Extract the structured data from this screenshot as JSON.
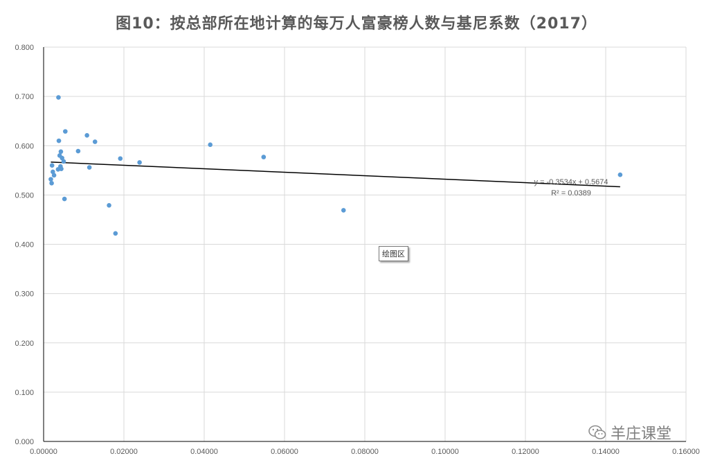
{
  "title": "图10：按总部所在地计算的每万人富豪榜人数与基尼系数（2017）",
  "plot_area_tooltip": "绘图区",
  "watermark": {
    "text": "羊庄课堂",
    "icon": "wechat-icon"
  },
  "colors": {
    "points": "#5B9BD5",
    "trendline": "#000000",
    "grid": "#D9D9D9",
    "text": "#595959"
  },
  "chart_data": {
    "type": "scatter",
    "title": "图10：按总部所在地计算的每万人富豪榜人数与基尼系数（2017）",
    "xlabel": "",
    "ylabel": "",
    "xlim": [
      0,
      0.16
    ],
    "ylim": [
      0,
      0.8
    ],
    "grid": true,
    "x_ticks": [
      "0.00000",
      "0.02000",
      "0.04000",
      "0.06000",
      "0.08000",
      "0.10000",
      "0.12000",
      "0.14000",
      "0.16000"
    ],
    "y_ticks": [
      "0.000",
      "0.100",
      "0.200",
      "0.300",
      "0.400",
      "0.500",
      "0.600",
      "0.700",
      "0.800"
    ],
    "series": [
      {
        "points": [
          {
            "x": 0.0018,
            "y": 0.532
          },
          {
            "x": 0.002,
            "y": 0.524
          },
          {
            "x": 0.0021,
            "y": 0.56
          },
          {
            "x": 0.0023,
            "y": 0.547
          },
          {
            "x": 0.0026,
            "y": 0.54
          },
          {
            "x": 0.0036,
            "y": 0.552
          },
          {
            "x": 0.0037,
            "y": 0.698
          },
          {
            "x": 0.0038,
            "y": 0.61
          },
          {
            "x": 0.004,
            "y": 0.58
          },
          {
            "x": 0.0042,
            "y": 0.558
          },
          {
            "x": 0.0043,
            "y": 0.588
          },
          {
            "x": 0.0044,
            "y": 0.553
          },
          {
            "x": 0.0046,
            "y": 0.575
          },
          {
            "x": 0.005,
            "y": 0.568
          },
          {
            "x": 0.0052,
            "y": 0.492
          },
          {
            "x": 0.0054,
            "y": 0.629
          },
          {
            "x": 0.0086,
            "y": 0.589
          },
          {
            "x": 0.0108,
            "y": 0.621
          },
          {
            "x": 0.0114,
            "y": 0.556
          },
          {
            "x": 0.0128,
            "y": 0.608
          },
          {
            "x": 0.0163,
            "y": 0.479
          },
          {
            "x": 0.0179,
            "y": 0.422
          },
          {
            "x": 0.0191,
            "y": 0.574
          },
          {
            "x": 0.0239,
            "y": 0.566
          },
          {
            "x": 0.0415,
            "y": 0.602
          },
          {
            "x": 0.0548,
            "y": 0.577
          },
          {
            "x": 0.0747,
            "y": 0.469
          },
          {
            "x": 0.1436,
            "y": 0.541
          }
        ]
      }
    ],
    "trendline": {
      "slope": -0.3534,
      "intercept": 0.5674,
      "x_range": [
        0.0018,
        0.1436
      ],
      "equation": "y = -0.3534x + 0.5674",
      "r2": "R² = 0.0389"
    }
  }
}
